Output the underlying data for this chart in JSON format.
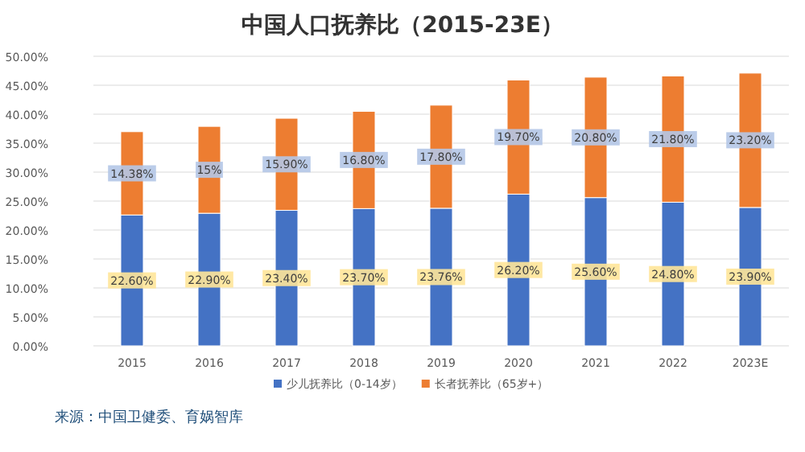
{
  "chart_data": {
    "type": "bar",
    "stacked": true,
    "title": "中国人口抚养比（2015-23E）",
    "categories": [
      "2015",
      "2016",
      "2017",
      "2018",
      "2019",
      "2020",
      "2021",
      "2022",
      "2023E"
    ],
    "series": [
      {
        "name": "少儿抚养比（0-14岁）",
        "color": "#4472c4",
        "values": [
          22.6,
          22.9,
          23.4,
          23.7,
          23.76,
          26.2,
          25.6,
          24.8,
          23.9
        ],
        "value_labels": [
          "22.60%",
          "22.90%",
          "23.40%",
          "23.70%",
          "23.76%",
          "26.20%",
          "25.60%",
          "24.80%",
          "23.90%"
        ]
      },
      {
        "name": "长者抚养比（65岁+）",
        "color": "#ed7d31",
        "values": [
          14.38,
          15,
          15.9,
          16.8,
          17.8,
          19.7,
          20.8,
          21.8,
          23.2
        ],
        "value_labels": [
          "14.38%",
          "15%",
          "15.90%",
          "16.80%",
          "17.80%",
          "19.70%",
          "20.80%",
          "21.80%",
          "23.20%"
        ]
      }
    ],
    "ylim": [
      0,
      50
    ],
    "yticks": [
      {
        "value": 0,
        "label": "0.00%"
      },
      {
        "value": 5,
        "label": "5.00%"
      },
      {
        "value": 10,
        "label": "10.00%"
      },
      {
        "value": 15,
        "label": "15.00%"
      },
      {
        "value": 20,
        "label": "20.00%"
      },
      {
        "value": 25,
        "label": "25.00%"
      },
      {
        "value": 30,
        "label": "30.00%"
      },
      {
        "value": 35,
        "label": "35.00%"
      },
      {
        "value": 40,
        "label": "40.00%"
      },
      {
        "value": 45,
        "label": "45.00%"
      },
      {
        "value": 50,
        "label": "50.00%"
      }
    ],
    "grid": "y",
    "legend": "bottom",
    "annotations": [
      "来源：中国卫健委、育娲智库"
    ]
  }
}
